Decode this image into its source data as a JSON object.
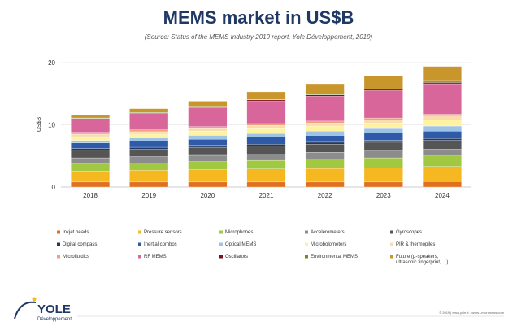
{
  "chart_data": {
    "type": "bar",
    "stacked": true,
    "title": "MEMS market in US$B",
    "subtitle": "(Source: Status of the MEMS Industry 2019 report, Yole Développement, 2019)",
    "xlabel": "",
    "ylabel": "US$B",
    "ylim": [
      0,
      20
    ],
    "yticks": [
      0,
      10,
      20
    ],
    "grid": true,
    "legend_position": "bottom",
    "categories": [
      "2018",
      "2019",
      "2020",
      "2021",
      "2022",
      "2023",
      "2024"
    ],
    "series": [
      {
        "name": "Inkjet heads",
        "color": "#e07020",
        "values": [
          0.8,
          0.8,
          0.8,
          0.8,
          0.8,
          0.8,
          0.9
        ]
      },
      {
        "name": "Pressure sensors",
        "color": "#f5b820",
        "values": [
          1.8,
          1.9,
          2.0,
          2.1,
          2.2,
          2.3,
          2.4
        ]
      },
      {
        "name": "Microphones",
        "color": "#a0c840",
        "values": [
          1.1,
          1.2,
          1.3,
          1.4,
          1.5,
          1.6,
          1.7
        ]
      },
      {
        "name": "Accelerometers",
        "color": "#8c8c8c",
        "values": [
          1.0,
          1.0,
          1.0,
          1.0,
          1.1,
          1.1,
          1.1
        ]
      },
      {
        "name": "Gyroscopes",
        "color": "#555555",
        "values": [
          1.2,
          1.2,
          1.3,
          1.3,
          1.3,
          1.4,
          1.4
        ]
      },
      {
        "name": "Digital compass",
        "color": "#1f3864",
        "values": [
          0.3,
          0.3,
          0.3,
          0.3,
          0.3,
          0.3,
          0.3
        ]
      },
      {
        "name": "Inertial combos",
        "color": "#2e5aa8",
        "values": [
          0.9,
          1.0,
          1.0,
          1.1,
          1.1,
          1.2,
          1.2
        ]
      },
      {
        "name": "Optical MEMS",
        "color": "#9dc3e6",
        "values": [
          0.4,
          0.5,
          0.6,
          0.6,
          0.7,
          0.7,
          0.8
        ]
      },
      {
        "name": "Microbolometers",
        "color": "#fff2a0",
        "values": [
          0.6,
          0.6,
          0.7,
          0.8,
          0.8,
          0.9,
          1.0
        ]
      },
      {
        "name": "PIR & thermopiles",
        "color": "#f8dcb0",
        "values": [
          0.4,
          0.4,
          0.4,
          0.5,
          0.5,
          0.5,
          0.6
        ]
      },
      {
        "name": "Microfluidics",
        "color": "#f0a080",
        "values": [
          0.3,
          0.3,
          0.3,
          0.3,
          0.3,
          0.3,
          0.3
        ]
      },
      {
        "name": "RF MEMS",
        "color": "#d9669a",
        "values": [
          2.1,
          2.6,
          3.1,
          3.6,
          4.0,
          4.4,
          4.9
        ]
      },
      {
        "name": "Oscillators",
        "color": "#7a1020",
        "values": [
          0.1,
          0.1,
          0.1,
          0.2,
          0.2,
          0.2,
          0.2
        ]
      },
      {
        "name": "Environmental MEMS",
        "color": "#6b8e23",
        "values": [
          0.1,
          0.1,
          0.1,
          0.1,
          0.1,
          0.1,
          0.2
        ]
      },
      {
        "name": "Future (µ-speakers, ultrasonic fingerprint, ...)",
        "color": "#c8962a",
        "values": [
          0.5,
          0.6,
          0.8,
          1.2,
          1.7,
          2.0,
          2.4
        ]
      }
    ]
  },
  "logo": {
    "name": "YOLE",
    "tagline": "Développement"
  },
  "footer": "© 2019 | www.yole.fr - www.i-micronews.com"
}
